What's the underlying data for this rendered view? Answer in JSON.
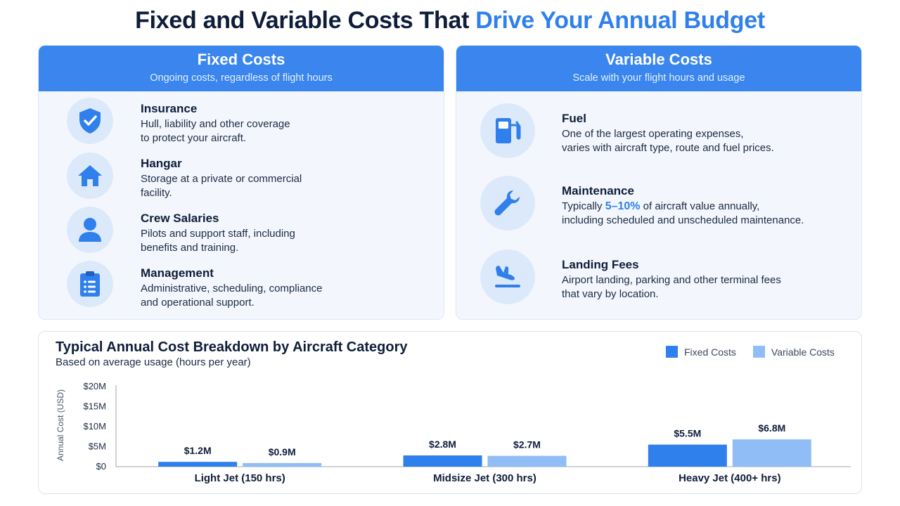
{
  "header": {
    "title_part1": "Fixed and Variable Costs That",
    "title_part2": "Drive Your Annual Budget"
  },
  "fixed_costs": {
    "title": "Fixed Costs",
    "subtitle": "Ongoing costs, regardless of flight hours",
    "items": [
      {
        "title": "Insurance",
        "line1": "Hull, liability and other coverage",
        "line2": "to protect your aircraft.",
        "icon": "shield-check-icon"
      },
      {
        "title": "Hangar",
        "line1": "Storage at a private or commercial",
        "line2": "facility.",
        "icon": "house-icon"
      },
      {
        "title": "Crew Salaries",
        "line1": "Pilots and support staff, including",
        "line2": "benefits and training.",
        "icon": "person-icon"
      },
      {
        "title": "Management",
        "line1": "Administrative, scheduling, compliance",
        "line2": "and operational support.",
        "icon": "clipboard-icon"
      }
    ]
  },
  "variable_costs": {
    "title": "Variable Costs",
    "subtitle": "Scale with your flight hours and usage",
    "items": [
      {
        "title": "Fuel",
        "line1": "One of the largest operating expenses,",
        "line2": "varies with aircraft type, route and fuel prices.",
        "icon": "fuel-pump-icon"
      },
      {
        "title": "Maintenance",
        "line1_pre": "Typically ",
        "line1_highlight": "5–10%",
        "line1_post": " of aircraft value annually,",
        "line2": "including scheduled and unscheduled maintenance.",
        "icon": "wrench-icon"
      },
      {
        "title": "Landing Fees",
        "line1": "Airport landing, parking and other terminal fees",
        "line2": "that vary by location.",
        "icon": "airplane-landing-icon"
      }
    ]
  },
  "colors": {
    "accent": "#2f80ec",
    "fixed": "#3a86ee",
    "variable": "#90bdf5",
    "icon_bg": "#dce9fb"
  },
  "chart_data": {
    "type": "bar",
    "title": "Typical Annual Cost Breakdown by Aircraft Category",
    "subtitle": "Based on average usage (hours per year)",
    "xlabel": "",
    "ylabel": "Annual Cost (USD)",
    "ylim": [
      0,
      20
    ],
    "yticks": [
      0,
      5,
      10,
      15,
      20
    ],
    "ytick_labels": [
      "$0",
      "$5M",
      "$10M",
      "$15M",
      "$20M"
    ],
    "categories": [
      "Light Jet (150 hrs)",
      "Midsize Jet (300 hrs)",
      "Heavy Jet (400+ hrs)"
    ],
    "series": [
      {
        "name": "Fixed Costs",
        "values": [
          1.2,
          2.8,
          5.5
        ],
        "labels": [
          "$1.2M",
          "$2.8M",
          "$5.5M"
        ],
        "color": "#2f80ec"
      },
      {
        "name": "Variable Costs",
        "values": [
          0.9,
          2.7,
          6.8
        ],
        "labels": [
          "$0.9M",
          "$2.7M",
          "$6.8M"
        ],
        "color": "#90bdf5"
      }
    ],
    "legend_position": "top-right",
    "grid": false
  }
}
